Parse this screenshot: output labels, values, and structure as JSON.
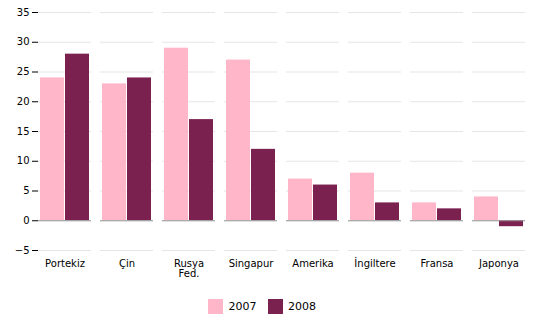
{
  "chart_data": {
    "type": "bar",
    "categories": [
      "Portekiz",
      "Çin",
      "Rusya\nFed.",
      "Singapur",
      "Amerika",
      "İngiltere",
      "Fransa",
      "Japonya"
    ],
    "series": [
      {
        "name": "2007",
        "color": "#FFB6C8",
        "values": [
          24,
          23,
          29,
          27,
          7,
          8,
          3,
          4
        ]
      },
      {
        "name": "2008",
        "color": "#7B2150",
        "values": [
          28,
          24,
          17,
          12,
          6,
          3,
          2,
          -1
        ]
      }
    ],
    "ylim": [
      -5,
      35
    ],
    "yticks": [
      -5,
      0,
      5,
      10,
      15,
      20,
      25,
      30,
      35
    ],
    "grid": true,
    "legend": "bottom"
  }
}
